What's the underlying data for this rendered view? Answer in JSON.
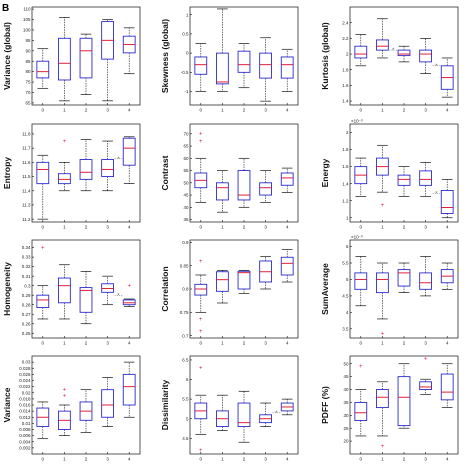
{
  "figure": {
    "panel_letter": "B"
  },
  "colors": {
    "box": "#2b2bd0",
    "median": "#e0203a",
    "outlier": "#e0203a",
    "whisker": "#111111",
    "axis": "#111111",
    "sig": "#666666"
  },
  "chart_data": [
    {
      "type": "box",
      "ylabel": "Variance (global)",
      "categories": [
        "0",
        "1",
        "2",
        "3",
        "4"
      ],
      "ylim": [
        64,
        111
      ],
      "yticks": [
        65,
        70,
        75,
        80,
        85,
        90,
        95,
        100,
        105,
        110
      ],
      "exponent": "",
      "boxes": [
        {
          "min": 72,
          "q1": 77,
          "median": 80,
          "q3": 85,
          "max": 91,
          "outliers": []
        },
        {
          "min": 66,
          "q1": 76,
          "median": 84,
          "q3": 96,
          "max": 106,
          "outliers": []
        },
        {
          "min": 69,
          "q1": 77,
          "median": 90,
          "q3": 96,
          "max": 98,
          "outliers": []
        },
        {
          "min": 66,
          "q1": 86,
          "median": 95,
          "q3": 104,
          "max": 105,
          "outliers": []
        },
        {
          "min": 79,
          "q1": 89,
          "median": 93,
          "q3": 97,
          "max": 101,
          "outliers": []
        }
      ],
      "sig": null
    },
    {
      "type": "box",
      "ylabel": "Skewness (global)",
      "categories": [
        "0",
        "1",
        "2",
        "3",
        "4"
      ],
      "ylim": [
        -1.35,
        1.2
      ],
      "yticks": [
        -1,
        -0.5,
        0,
        0.5,
        1
      ],
      "exponent": "",
      "boxes": [
        {
          "min": -1.0,
          "q1": -0.55,
          "median": -0.3,
          "q3": -0.1,
          "max": 0.25,
          "outliers": []
        },
        {
          "min": -1.0,
          "q1": -0.8,
          "median": -0.75,
          "q3": 0.0,
          "max": 1.15,
          "outliers": []
        },
        {
          "min": -0.9,
          "q1": -0.5,
          "median": -0.3,
          "q3": 0.05,
          "max": 0.25,
          "outliers": []
        },
        {
          "min": -1.25,
          "q1": -0.65,
          "median": -0.3,
          "q3": 0.0,
          "max": 0.4,
          "outliers": []
        },
        {
          "min": -1.0,
          "q1": -0.65,
          "median": -0.3,
          "q3": -0.1,
          "max": 0.1,
          "outliers": []
        }
      ],
      "sig": null
    },
    {
      "type": "box",
      "ylabel": "Kurtosis (global)",
      "categories": [
        "0",
        "1",
        "2",
        "3",
        "4"
      ],
      "ylim": [
        1.35,
        2.6
      ],
      "yticks": [
        1.4,
        1.6,
        1.8,
        2,
        2.2,
        2.4
      ],
      "exponent": "",
      "boxes": [
        {
          "min": 1.85,
          "q1": 1.95,
          "median": 2.0,
          "q3": 2.1,
          "max": 2.25,
          "outliers": []
        },
        {
          "min": 1.95,
          "q1": 2.05,
          "median": 2.1,
          "q3": 2.18,
          "max": 2.45,
          "outliers": []
        },
        {
          "min": 1.9,
          "q1": 1.98,
          "median": 2.0,
          "q3": 2.05,
          "max": 2.1,
          "outliers": []
        },
        {
          "min": 1.75,
          "q1": 1.9,
          "median": 2.0,
          "q3": 2.05,
          "max": 2.2,
          "outliers": []
        },
        {
          "min": 1.45,
          "q1": 1.55,
          "median": 1.7,
          "q3": 1.85,
          "max": 1.95,
          "outliers": []
        }
      ],
      "sig": [
        [
          1,
          2
        ],
        [
          3,
          4
        ]
      ]
    },
    {
      "type": "box",
      "ylabel": "Entropy",
      "categories": [
        "0",
        "1",
        "2",
        "3",
        "4"
      ],
      "ylim": [
        11.18,
        11.87
      ],
      "yticks": [
        11.2,
        11.3,
        11.4,
        11.5,
        11.6,
        11.7,
        11.8
      ],
      "exponent": "",
      "boxes": [
        {
          "min": 11.2,
          "q1": 11.45,
          "median": 11.55,
          "q3": 11.6,
          "max": 11.65,
          "outliers": []
        },
        {
          "min": 11.4,
          "q1": 11.45,
          "median": 11.48,
          "q3": 11.52,
          "max": 11.6,
          "outliers": [
            11.75
          ]
        },
        {
          "min": 11.4,
          "q1": 11.48,
          "median": 11.53,
          "q3": 11.62,
          "max": 11.76,
          "outliers": []
        },
        {
          "min": 11.4,
          "q1": 11.5,
          "median": 11.55,
          "q3": 11.62,
          "max": 11.75,
          "outliers": []
        },
        {
          "min": 11.45,
          "q1": 11.58,
          "median": 11.7,
          "q3": 11.77,
          "max": 11.78,
          "outliers": []
        }
      ],
      "sig": [
        [
          3,
          4
        ]
      ]
    },
    {
      "type": "box",
      "ylabel": "Contrast",
      "categories": [
        "0",
        "1",
        "2",
        "3",
        "4"
      ],
      "ylim": [
        34,
        74
      ],
      "yticks": [
        35,
        40,
        45,
        50,
        55,
        60,
        65,
        70
      ],
      "exponent": "",
      "boxes": [
        {
          "min": 42,
          "q1": 48,
          "median": 51,
          "q3": 54,
          "max": 60,
          "outliers": [
            67,
            70
          ]
        },
        {
          "min": 38,
          "q1": 43,
          "median": 48,
          "q3": 50,
          "max": 55,
          "outliers": []
        },
        {
          "min": 40,
          "q1": 43,
          "median": 45,
          "q3": 55,
          "max": 60,
          "outliers": []
        },
        {
          "min": 42,
          "q1": 45,
          "median": 48,
          "q3": 50,
          "max": 55,
          "outliers": []
        },
        {
          "min": 46,
          "q1": 49,
          "median": 52,
          "q3": 54,
          "max": 56,
          "outliers": []
        }
      ],
      "sig": null
    },
    {
      "type": "box",
      "ylabel": "Energy",
      "categories": [
        "0",
        "1",
        "2",
        "3",
        "4"
      ],
      "ylim": [
        0.95,
        2.1
      ],
      "yticks": [
        1,
        1.2,
        1.4,
        1.6,
        1.8,
        2
      ],
      "exponent": "×10⁻³",
      "boxes": [
        {
          "min": 1.25,
          "q1": 1.4,
          "median": 1.5,
          "q3": 1.6,
          "max": 1.7,
          "outliers": []
        },
        {
          "min": 1.3,
          "q1": 1.5,
          "median": 1.6,
          "q3": 1.7,
          "max": 1.85,
          "outliers": [
            1.15
          ]
        },
        {
          "min": 1.25,
          "q1": 1.38,
          "median": 1.45,
          "q3": 1.5,
          "max": 1.6,
          "outliers": []
        },
        {
          "min": 1.25,
          "q1": 1.38,
          "median": 1.45,
          "q3": 1.55,
          "max": 1.65,
          "outliers": []
        },
        {
          "min": 1.0,
          "q1": 1.05,
          "median": 1.12,
          "q3": 1.32,
          "max": 1.45,
          "outliers": []
        }
      ],
      "sig": [
        [
          3,
          4
        ]
      ]
    },
    {
      "type": "box",
      "ylabel": "Homogeneity",
      "categories": [
        "0",
        "1",
        "2",
        "3",
        "4"
      ],
      "ylim": [
        0.245,
        0.348
      ],
      "yticks": [
        0.25,
        0.26,
        0.27,
        0.28,
        0.29,
        0.3,
        0.31,
        0.32,
        0.33,
        0.34
      ],
      "exponent": "",
      "boxes": [
        {
          "min": 0.265,
          "q1": 0.277,
          "median": 0.285,
          "q3": 0.29,
          "max": 0.3,
          "outliers": [
            0.34
          ]
        },
        {
          "min": 0.265,
          "q1": 0.282,
          "median": 0.3,
          "q3": 0.308,
          "max": 0.322,
          "outliers": []
        },
        {
          "min": 0.26,
          "q1": 0.272,
          "median": 0.295,
          "q3": 0.298,
          "max": 0.315,
          "outliers": []
        },
        {
          "min": 0.28,
          "q1": 0.293,
          "median": 0.297,
          "q3": 0.302,
          "max": 0.31,
          "outliers": []
        },
        {
          "min": 0.278,
          "q1": 0.28,
          "median": 0.282,
          "q3": 0.285,
          "max": 0.286,
          "outliers": [
            0.3
          ]
        }
      ],
      "sig": [
        [
          3,
          4
        ]
      ]
    },
    {
      "type": "box",
      "ylabel": "Correlation",
      "categories": [
        "0",
        "1",
        "2",
        "3",
        "4"
      ],
      "ylim": [
        0.695,
        0.905
      ],
      "yticks": [
        0.7,
        0.75,
        0.8,
        0.85,
        0.9
      ],
      "exponent": "",
      "boxes": [
        {
          "min": 0.75,
          "q1": 0.787,
          "median": 0.8,
          "q3": 0.81,
          "max": 0.83,
          "outliers": [
            0.71,
            0.735,
            0.86
          ]
        },
        {
          "min": 0.77,
          "q1": 0.795,
          "median": 0.82,
          "q3": 0.837,
          "max": 0.84,
          "outliers": []
        },
        {
          "min": 0.79,
          "q1": 0.8,
          "median": 0.835,
          "q3": 0.838,
          "max": 0.84,
          "outliers": []
        },
        {
          "min": 0.8,
          "q1": 0.815,
          "median": 0.837,
          "q3": 0.86,
          "max": 0.87,
          "outliers": []
        },
        {
          "min": 0.815,
          "q1": 0.83,
          "median": 0.855,
          "q3": 0.868,
          "max": 0.885,
          "outliers": []
        }
      ],
      "sig": null
    },
    {
      "type": "box",
      "ylabel": "SumAverage",
      "categories": [
        "0",
        "1",
        "2",
        "3",
        "4"
      ],
      "ylim": [
        3.22,
        6.2
      ],
      "yticks": [
        3.5,
        4,
        4.5,
        5,
        5.5,
        6
      ],
      "exponent": "×10⁻³",
      "boxes": [
        {
          "min": 4.2,
          "q1": 4.7,
          "median": 5.0,
          "q3": 5.2,
          "max": 5.7,
          "outliers": []
        },
        {
          "min": 3.8,
          "q1": 4.6,
          "median": 5.0,
          "q3": 5.2,
          "max": 5.5,
          "outliers": [
            3.35
          ]
        },
        {
          "min": 4.6,
          "q1": 4.8,
          "median": 5.2,
          "q3": 5.3,
          "max": 5.5,
          "outliers": []
        },
        {
          "min": 4.5,
          "q1": 4.7,
          "median": 4.9,
          "q3": 5.2,
          "max": 5.7,
          "outliers": []
        },
        {
          "min": 4.7,
          "q1": 4.9,
          "median": 5.1,
          "q3": 5.3,
          "max": 5.5,
          "outliers": []
        }
      ],
      "sig": null
    },
    {
      "type": "box",
      "ylabel": "Variance",
      "categories": [
        "0",
        "1",
        "2",
        "3",
        "4"
      ],
      "ylim": [
        0,
        0.032
      ],
      "yticks": [
        0.002,
        0.004,
        0.006,
        0.008,
        0.01,
        0.012,
        0.014,
        0.016,
        0.018,
        0.02,
        0.022,
        0.024,
        0.026,
        0.028,
        0.03
      ],
      "exponent": "",
      "boxes": [
        {
          "min": 0.005,
          "q1": 0.009,
          "median": 0.012,
          "q3": 0.015,
          "max": 0.017,
          "outliers": []
        },
        {
          "min": 0.006,
          "q1": 0.008,
          "median": 0.011,
          "q3": 0.014,
          "max": 0.016,
          "outliers": [
            0.019,
            0.021
          ]
        },
        {
          "min": 0.007,
          "q1": 0.011,
          "median": 0.014,
          "q3": 0.017,
          "max": 0.021,
          "outliers": []
        },
        {
          "min": 0.009,
          "q1": 0.012,
          "median": 0.016,
          "q3": 0.021,
          "max": 0.025,
          "outliers": []
        },
        {
          "min": 0.012,
          "q1": 0.016,
          "median": 0.022,
          "q3": 0.026,
          "max": 0.03,
          "outliers": []
        }
      ],
      "sig": null
    },
    {
      "type": "box",
      "ylabel": "Dissimilarity",
      "categories": [
        "0",
        "1",
        "2",
        "3",
        "4"
      ],
      "ylim": [
        4.1,
        6.6
      ],
      "yticks": [
        4.5,
        5,
        5.5,
        6,
        6.5
      ],
      "exponent": "",
      "boxes": [
        {
          "min": 4.6,
          "q1": 5.0,
          "median": 5.2,
          "q3": 5.4,
          "max": 5.6,
          "outliers": [
            4.2,
            6.3
          ]
        },
        {
          "min": 4.7,
          "q1": 4.8,
          "median": 5.0,
          "q3": 5.2,
          "max": 5.6,
          "outliers": []
        },
        {
          "min": 4.4,
          "q1": 4.8,
          "median": 4.9,
          "q3": 5.4,
          "max": 5.7,
          "outliers": []
        },
        {
          "min": 4.8,
          "q1": 4.9,
          "median": 5.0,
          "q3": 5.1,
          "max": 5.4,
          "outliers": []
        },
        {
          "min": 5.1,
          "q1": 5.2,
          "median": 5.3,
          "q3": 5.4,
          "max": 5.5,
          "outliers": []
        }
      ],
      "sig": [
        [
          3,
          4
        ]
      ]
    },
    {
      "type": "box",
      "ylabel": "PDFF (%)",
      "categories": [
        "0",
        "1",
        "2",
        "3",
        "4"
      ],
      "ylim": [
        15,
        53
      ],
      "yticks": [
        20,
        25,
        30,
        35,
        40,
        45,
        50
      ],
      "exponent": "",
      "boxes": [
        {
          "min": 22,
          "q1": 28,
          "median": 31,
          "q3": 35,
          "max": 40,
          "outliers": [
            49
          ]
        },
        {
          "min": 22,
          "q1": 33,
          "median": 37,
          "q3": 40,
          "max": 43,
          "outliers": [
            18
          ]
        },
        {
          "min": 25,
          "q1": 26,
          "median": 37,
          "q3": 45,
          "max": 50,
          "outliers": []
        },
        {
          "min": 38,
          "q1": 40,
          "median": 41,
          "q3": 43,
          "max": 44,
          "outliers": [
            52
          ]
        },
        {
          "min": 33,
          "q1": 36,
          "median": 39,
          "q3": 46,
          "max": 50,
          "outliers": []
        }
      ],
      "sig": null
    }
  ]
}
